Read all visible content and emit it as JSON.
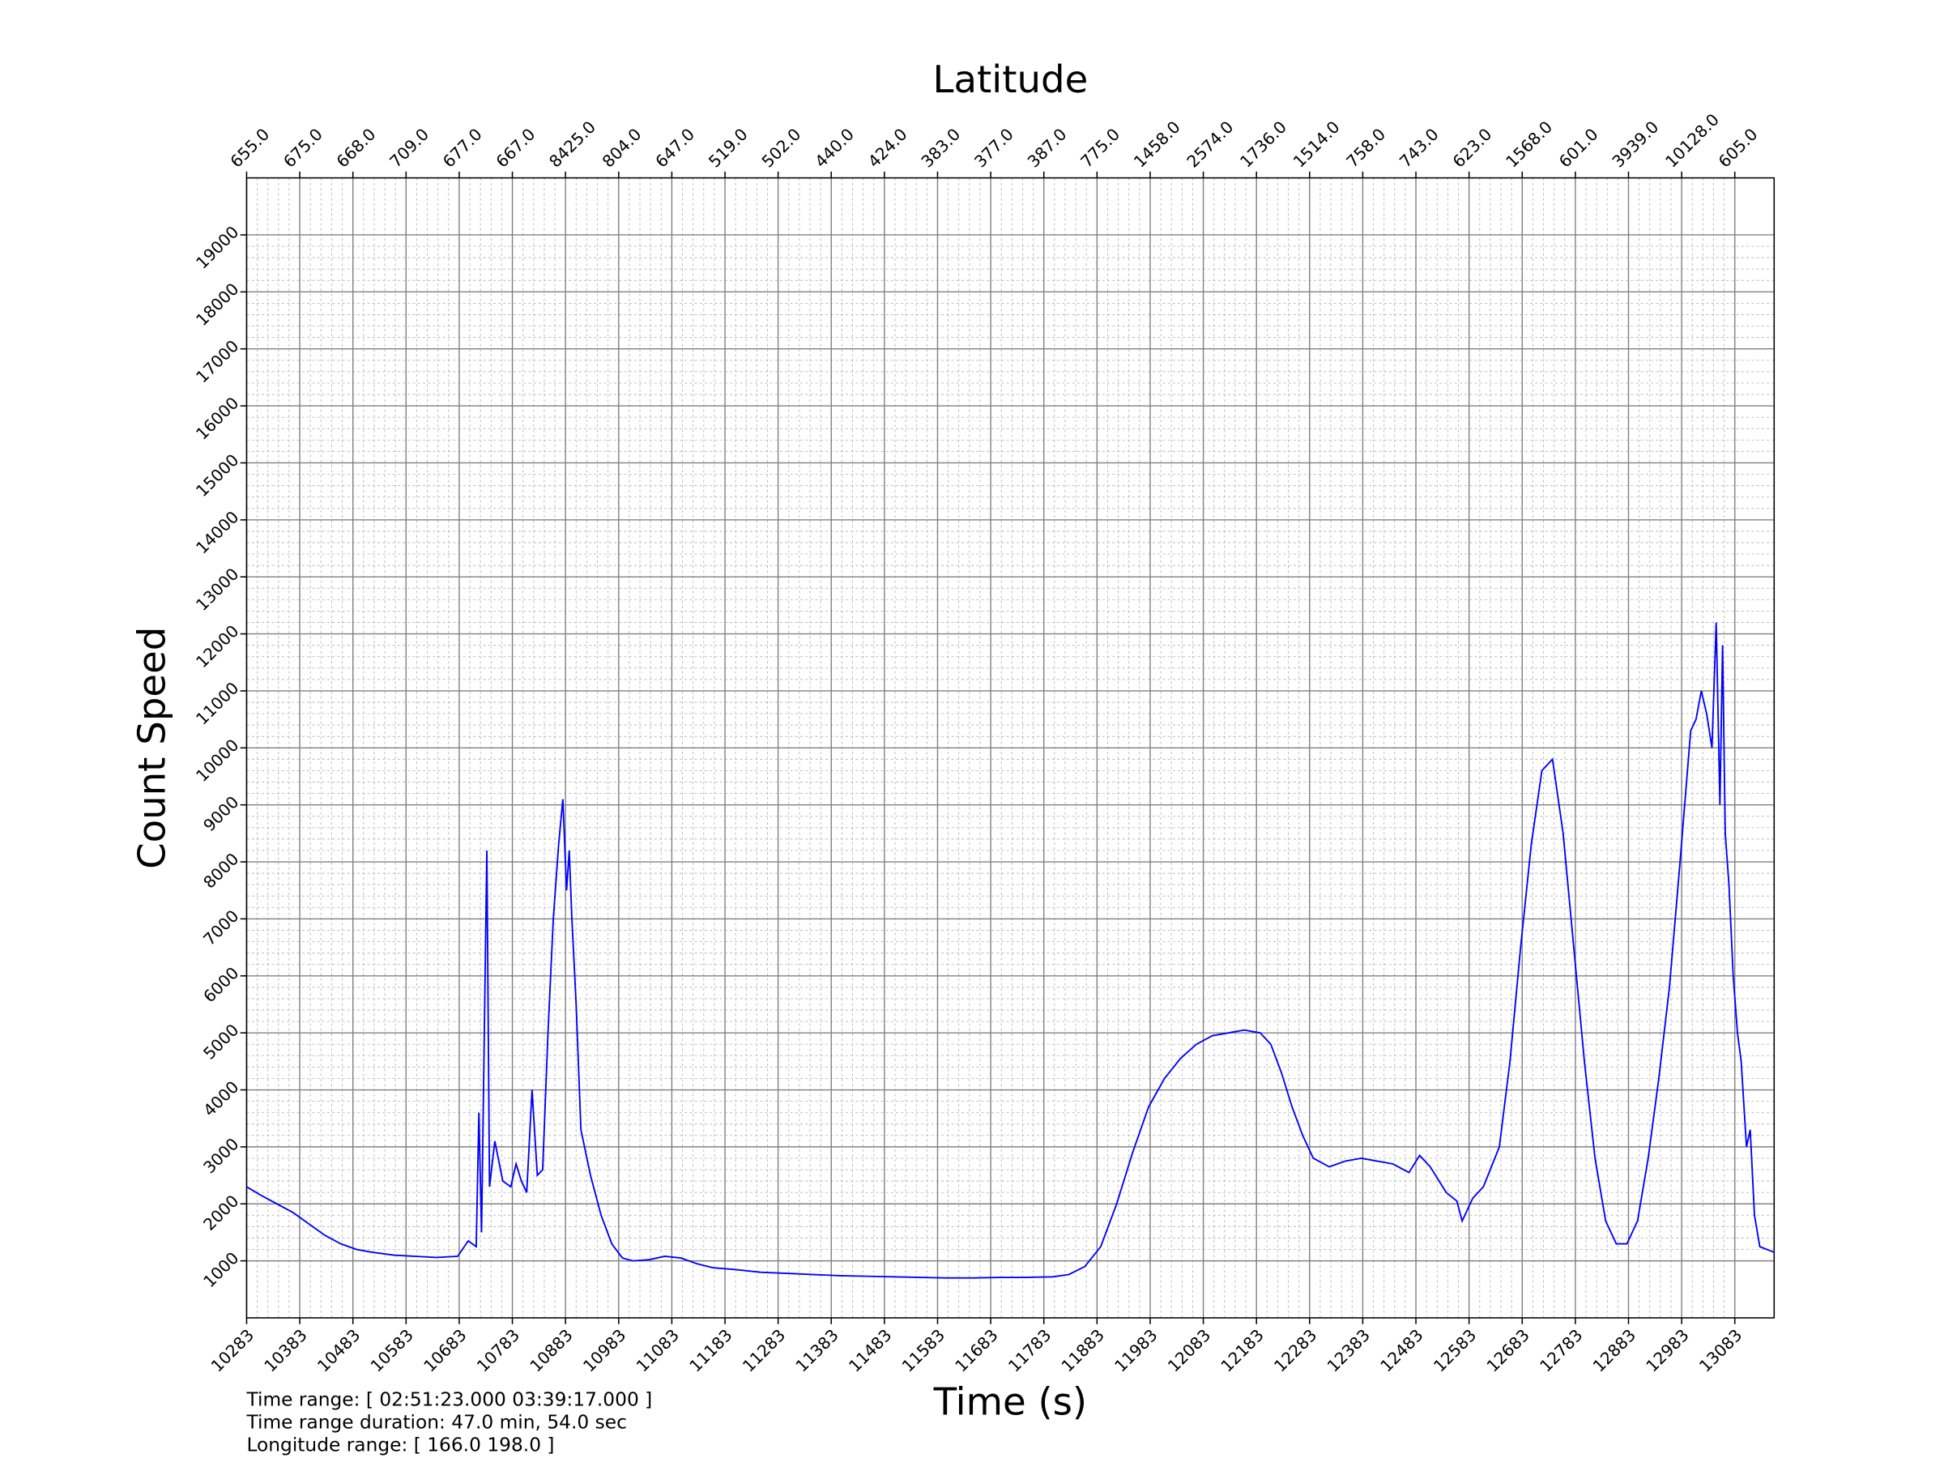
{
  "chart_data": {
    "type": "line",
    "title": "Latitude",
    "xlabel": "Time (s)",
    "ylabel": "Count Speed",
    "annotations": [
      "Time range: [ 02:51:23.000  03:39:17.000 ]",
      "Time range duration: 47.0 min, 54.0 sec",
      "Longitude range: [ 166.0  198.0 ]"
    ],
    "xlim": [
      10283,
      13157
    ],
    "ylim": [
      0,
      20000
    ],
    "xticks": [
      10283,
      10383,
      10483,
      10583,
      10683,
      10783,
      10883,
      10983,
      11083,
      11183,
      11283,
      11383,
      11483,
      11583,
      11683,
      11783,
      11883,
      11983,
      12083,
      12183,
      12283,
      12383,
      12483,
      12583,
      12683,
      12783,
      12883,
      12983,
      13083
    ],
    "x2ticks": [
      {
        "value": 10283,
        "label": "655.0"
      },
      {
        "value": 10383,
        "label": "675.0"
      },
      {
        "value": 10483,
        "label": "668.0"
      },
      {
        "value": 10583,
        "label": "709.0"
      },
      {
        "value": 10683,
        "label": "677.0"
      },
      {
        "value": 10783,
        "label": "667.0"
      },
      {
        "value": 10883,
        "label": "8425.0"
      },
      {
        "value": 10983,
        "label": "804.0"
      },
      {
        "value": 11083,
        "label": "647.0"
      },
      {
        "value": 11183,
        "label": "519.0"
      },
      {
        "value": 11283,
        "label": "502.0"
      },
      {
        "value": 11383,
        "label": "440.0"
      },
      {
        "value": 11483,
        "label": "424.0"
      },
      {
        "value": 11583,
        "label": "383.0"
      },
      {
        "value": 11683,
        "label": "377.0"
      },
      {
        "value": 11783,
        "label": "387.0"
      },
      {
        "value": 11883,
        "label": "775.0"
      },
      {
        "value": 11983,
        "label": "1458.0"
      },
      {
        "value": 12083,
        "label": "2574.0"
      },
      {
        "value": 12183,
        "label": "1736.0"
      },
      {
        "value": 12283,
        "label": "1514.0"
      },
      {
        "value": 12383,
        "label": "758.0"
      },
      {
        "value": 12483,
        "label": "743.0"
      },
      {
        "value": 12583,
        "label": "623.0"
      },
      {
        "value": 12683,
        "label": "1568.0"
      },
      {
        "value": 12783,
        "label": "601.0"
      },
      {
        "value": 12883,
        "label": "3939.0"
      },
      {
        "value": 12983,
        "label": "10128.0"
      },
      {
        "value": 13083,
        "label": "605.0"
      }
    ],
    "yticks": [
      1000,
      2000,
      3000,
      4000,
      5000,
      6000,
      7000,
      8000,
      9000,
      10000,
      11000,
      12000,
      13000,
      14000,
      15000,
      16000,
      17000,
      18000,
      19000
    ],
    "grid": true,
    "minor_grid": true,
    "series": [
      {
        "color": "#0000ff",
        "x": [
          10283,
          10310,
          10340,
          10370,
          10400,
          10430,
          10460,
          10490,
          10520,
          10560,
          10600,
          10640,
          10680,
          10700,
          10715,
          10720,
          10725,
          10735,
          10740,
          10750,
          10765,
          10780,
          10790,
          10800,
          10810,
          10820,
          10830,
          10840,
          10850,
          10860,
          10870,
          10878,
          10885,
          10890,
          10895,
          10903,
          10912,
          10930,
          10950,
          10970,
          10990,
          11010,
          11040,
          11070,
          11100,
          11130,
          11160,
          11200,
          11250,
          11300,
          11350,
          11400,
          11450,
          11500,
          11550,
          11600,
          11650,
          11700,
          11750,
          11800,
          11830,
          11860,
          11890,
          11920,
          11950,
          11980,
          12010,
          12040,
          12070,
          12100,
          12130,
          12160,
          12190,
          12210,
          12230,
          12250,
          12270,
          12290,
          12320,
          12350,
          12380,
          12410,
          12440,
          12470,
          12490,
          12510,
          12540,
          12560,
          12570,
          12590,
          12610,
          12640,
          12660,
          12680,
          12700,
          12720,
          12740,
          12760,
          12780,
          12800,
          12820,
          12840,
          12860,
          12880,
          12900,
          12920,
          12940,
          12960,
          12980,
          13000,
          13010,
          13020,
          13030,
          13040,
          13048,
          13055,
          13060,
          13065,
          13072,
          13080,
          13088,
          13095,
          13105,
          13112,
          13120,
          13130,
          13157
        ],
        "values": [
          2300,
          2150,
          2000,
          1850,
          1650,
          1450,
          1300,
          1200,
          1150,
          1100,
          1080,
          1060,
          1080,
          1350,
          1250,
          3600,
          1500,
          8200,
          2300,
          3100,
          2400,
          2300,
          2700,
          2400,
          2200,
          4000,
          2500,
          2600,
          5000,
          7000,
          8300,
          9100,
          7500,
          8200,
          7000,
          5500,
          3300,
          2500,
          1800,
          1300,
          1050,
          1000,
          1020,
          1080,
          1050,
          950,
          880,
          850,
          800,
          780,
          760,
          740,
          730,
          720,
          710,
          700,
          700,
          710,
          710,
          720,
          760,
          900,
          1250,
          2000,
          2900,
          3700,
          4200,
          4550,
          4800,
          4950,
          5000,
          5050,
          5000,
          4800,
          4300,
          3700,
          3200,
          2800,
          2650,
          2750,
          2800,
          2750,
          2700,
          2550,
          2850,
          2650,
          2200,
          2050,
          1700,
          2100,
          2300,
          3000,
          4500,
          6500,
          8300,
          9600,
          9800,
          8500,
          6500,
          4500,
          2800,
          1700,
          1300,
          1300,
          1700,
          2800,
          4200,
          5800,
          8000,
          10300,
          10500,
          11000,
          10600,
          10000,
          12200,
          9000,
          11800,
          8500,
          7600,
          6000,
          5000,
          4500,
          3000,
          3300,
          1800,
          1250,
          1150
        ]
      }
    ]
  }
}
